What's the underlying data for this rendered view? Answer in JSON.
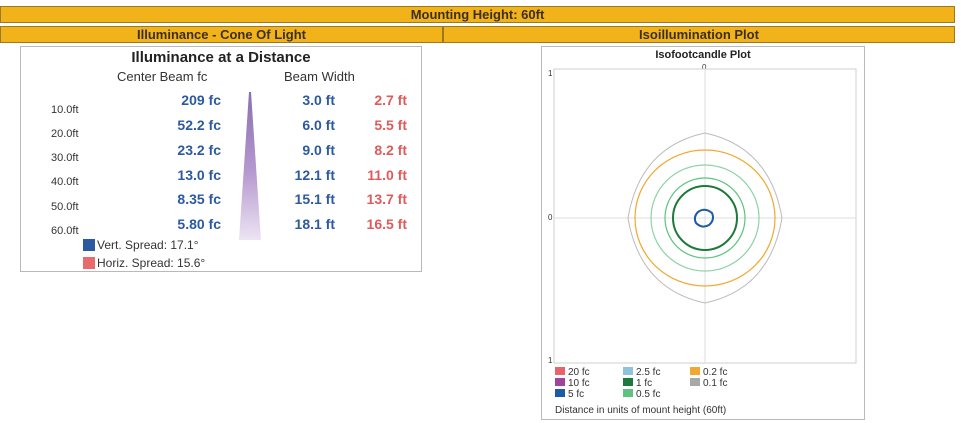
{
  "header": {
    "mounting": "Mounting Height: 60ft",
    "left_section": "Illuminance - Cone Of Light",
    "right_section": "Isoillumination Plot"
  },
  "illuminance": {
    "title": "Illuminance at a Distance",
    "col_center": "Center Beam fc",
    "col_width": "Beam Width",
    "rows": [
      {
        "distance": "10.0ft",
        "center": "209 fc",
        "vert": "3.0 ft",
        "horiz": "2.7 ft"
      },
      {
        "distance": "20.0ft",
        "center": "52.2 fc",
        "vert": "6.0 ft",
        "horiz": "5.5 ft"
      },
      {
        "distance": "30.0ft",
        "center": "23.2 fc",
        "vert": "9.0 ft",
        "horiz": "8.2 ft"
      },
      {
        "distance": "40.0ft",
        "center": "13.0 fc",
        "vert": "12.1 ft",
        "horiz": "11.0 ft"
      },
      {
        "distance": "50.0ft",
        "center": "8.35 fc",
        "vert": "15.1 ft",
        "horiz": "13.7 ft"
      },
      {
        "distance": "60.0ft",
        "center": "5.80 fc",
        "vert": "18.1 ft",
        "horiz": "16.5 ft"
      }
    ],
    "legend": {
      "vert": "Vert. Spread: 17.1°",
      "horiz": "Horiz. Spread: 15.6°"
    },
    "colors": {
      "vert": "#2c5aa0",
      "horiz": "#e86a6a",
      "cone": "#b79ad0"
    }
  },
  "plot": {
    "title": "Isofootcandle Plot",
    "ticks": {
      "top_left": "1",
      "top_center": "0",
      "mid_left": "0",
      "bottom_left": "1"
    },
    "legend": [
      {
        "label": "20 fc",
        "color": "#e8626e"
      },
      {
        "label": "10 fc",
        "color": "#a0449c"
      },
      {
        "label": "5 fc",
        "color": "#1e5aa8"
      },
      {
        "label": "2.5 fc",
        "color": "#8ec3da"
      },
      {
        "label": "1 fc",
        "color": "#1e7a3c"
      },
      {
        "label": "0.5 fc",
        "color": "#5cc47e"
      },
      {
        "label": "0.2 fc",
        "color": "#f0a830"
      },
      {
        "label": "0.1 fc",
        "color": "#a8a8a8"
      }
    ],
    "footnote": "Distance in units of mount height (60ft)"
  }
}
